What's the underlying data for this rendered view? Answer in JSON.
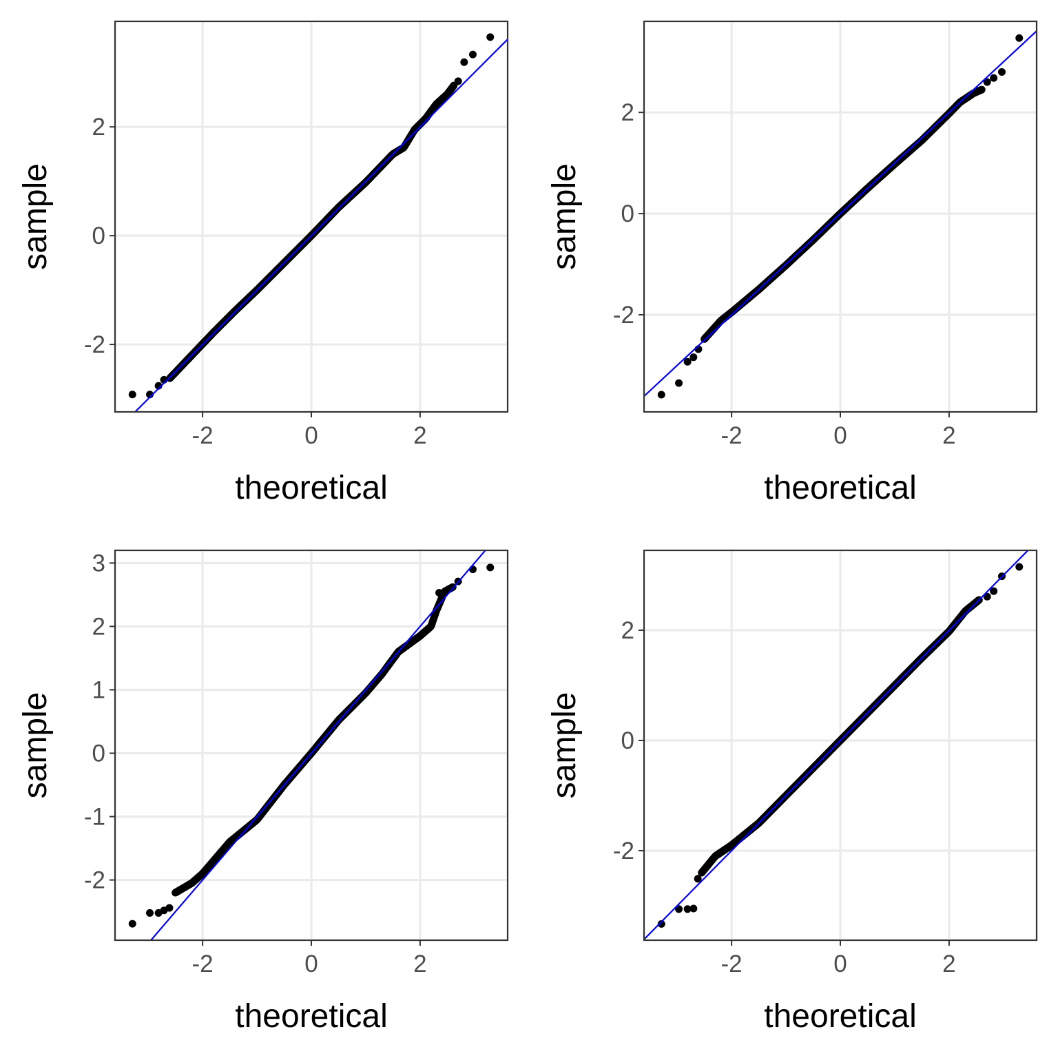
{
  "chart_data": [
    {
      "type": "scatter",
      "title": "",
      "xlabel": "theoretical",
      "ylabel": "sample",
      "xlim": [
        -3.61,
        3.61
      ],
      "ylim": [
        -3.24,
        3.94
      ],
      "xticks": [
        -2,
        0,
        2
      ],
      "xtick_labels": [
        "-2",
        "0",
        "2"
      ],
      "yticks": [
        -2,
        0,
        2
      ],
      "ytick_labels": [
        "-2",
        "0",
        "2"
      ],
      "grid": true,
      "reference_line": {
        "intercept": 0,
        "slope": 1,
        "color": "#0000ff"
      },
      "body": [
        [
          -2.6,
          -2.62
        ],
        [
          -2.2,
          -2.2
        ],
        [
          -1.8,
          -1.78
        ],
        [
          -1.4,
          -1.38
        ],
        [
          -1,
          -1
        ],
        [
          -0.5,
          -0.5
        ],
        [
          0,
          0
        ],
        [
          0.5,
          0.52
        ],
        [
          1,
          0.98
        ],
        [
          1.5,
          1.5
        ],
        [
          1.7,
          1.62
        ],
        [
          1.9,
          1.95
        ],
        [
          2.1,
          2.15
        ],
        [
          2.3,
          2.42
        ],
        [
          2.5,
          2.6
        ],
        [
          2.62,
          2.76
        ]
      ],
      "tail_points": [
        [
          -3.29,
          -2.92
        ],
        [
          -2.97,
          -2.92
        ],
        [
          -2.81,
          -2.76
        ],
        [
          -2.71,
          -2.65
        ],
        [
          2.7,
          2.84
        ],
        [
          2.81,
          3.19
        ],
        [
          2.97,
          3.33
        ],
        [
          3.29,
          3.65
        ]
      ]
    },
    {
      "type": "scatter",
      "title": "",
      "xlabel": "theoretical",
      "ylabel": "sample",
      "xlim": [
        -3.61,
        3.61
      ],
      "ylim": [
        -3.92,
        3.8
      ],
      "xticks": [
        -2,
        0,
        2
      ],
      "xtick_labels": [
        "-2",
        "0",
        "2"
      ],
      "yticks": [
        -2,
        0,
        2
      ],
      "ytick_labels": [
        "-2",
        "0",
        "2"
      ],
      "grid": true,
      "reference_line": {
        "intercept": 0,
        "slope": 1,
        "color": "#0000ff"
      },
      "body": [
        [
          -2.5,
          -2.48
        ],
        [
          -2.2,
          -2.12
        ],
        [
          -2,
          -1.95
        ],
        [
          -1.5,
          -1.5
        ],
        [
          -1,
          -1.02
        ],
        [
          -0.5,
          -0.52
        ],
        [
          0,
          0
        ],
        [
          0.5,
          0.5
        ],
        [
          1,
          0.98
        ],
        [
          1.5,
          1.45
        ],
        [
          2,
          1.98
        ],
        [
          2.2,
          2.2
        ],
        [
          2.45,
          2.38
        ],
        [
          2.6,
          2.45
        ]
      ],
      "tail_points": [
        [
          -3.29,
          -3.58
        ],
        [
          -2.97,
          -3.35
        ],
        [
          -2.81,
          -2.93
        ],
        [
          -2.7,
          -2.84
        ],
        [
          -2.61,
          -2.68
        ],
        [
          2.7,
          2.6
        ],
        [
          2.82,
          2.68
        ],
        [
          2.97,
          2.8
        ],
        [
          3.29,
          3.47
        ]
      ]
    },
    {
      "type": "scatter",
      "title": "",
      "xlabel": "theoretical",
      "ylabel": "sample",
      "xlim": [
        -3.61,
        3.61
      ],
      "ylim": [
        -2.95,
        3.2
      ],
      "xticks": [
        -2,
        0,
        2
      ],
      "xtick_labels": [
        "-2",
        "0",
        "2"
      ],
      "yticks": [
        -2,
        -1,
        0,
        1,
        2,
        3
      ],
      "ytick_labels": [
        "-2",
        "-1",
        "0",
        "1",
        "2",
        "3"
      ],
      "grid": true,
      "reference_line": {
        "intercept": 0,
        "slope": 1,
        "color": "#0000ff"
      },
      "body": [
        [
          -2.5,
          -2.2
        ],
        [
          -2.2,
          -2.05
        ],
        [
          -2,
          -1.9
        ],
        [
          -1.5,
          -1.4
        ],
        [
          -1,
          -1.05
        ],
        [
          -0.5,
          -0.5
        ],
        [
          0,
          0
        ],
        [
          0.5,
          0.52
        ],
        [
          1,
          0.95
        ],
        [
          1.3,
          1.25
        ],
        [
          1.6,
          1.6
        ],
        [
          2,
          1.85
        ],
        [
          2.2,
          2.0
        ],
        [
          2.3,
          2.25
        ],
        [
          2.45,
          2.55
        ],
        [
          2.6,
          2.62
        ]
      ],
      "tail_points": [
        [
          -3.29,
          -2.69
        ],
        [
          -2.97,
          -2.52
        ],
        [
          -2.81,
          -2.52
        ],
        [
          -2.71,
          -2.48
        ],
        [
          -2.61,
          -2.44
        ],
        [
          2.35,
          2.53
        ],
        [
          2.7,
          2.71
        ],
        [
          2.97,
          2.9
        ],
        [
          3.29,
          2.93
        ]
      ]
    },
    {
      "type": "scatter",
      "title": "",
      "xlabel": "theoretical",
      "ylabel": "sample",
      "xlim": [
        -3.61,
        3.61
      ],
      "ylim": [
        -3.625,
        3.45
      ],
      "xticks": [
        -2,
        0,
        2
      ],
      "xtick_labels": [
        "-2",
        "0",
        "2"
      ],
      "yticks": [
        -2,
        0,
        2
      ],
      "ytick_labels": [
        "-2",
        "0",
        "2"
      ],
      "grid": true,
      "reference_line": {
        "intercept": 0,
        "slope": 1,
        "color": "#0000ff"
      },
      "body": [
        [
          -2.55,
          -2.4
        ],
        [
          -2.3,
          -2.1
        ],
        [
          -2,
          -1.9
        ],
        [
          -1.5,
          -1.5
        ],
        [
          -1,
          -1
        ],
        [
          0,
          0
        ],
        [
          1,
          1
        ],
        [
          1.5,
          1.5
        ],
        [
          2,
          1.98
        ],
        [
          2.3,
          2.35
        ],
        [
          2.55,
          2.55
        ]
      ],
      "tail_points": [
        [
          -3.29,
          -3.33
        ],
        [
          -2.97,
          -3.06
        ],
        [
          -2.81,
          -3.06
        ],
        [
          -2.7,
          -3.05
        ],
        [
          -2.62,
          -2.51
        ],
        [
          2.7,
          2.61
        ],
        [
          2.82,
          2.71
        ],
        [
          2.97,
          2.98
        ],
        [
          3.29,
          3.15
        ]
      ]
    }
  ]
}
